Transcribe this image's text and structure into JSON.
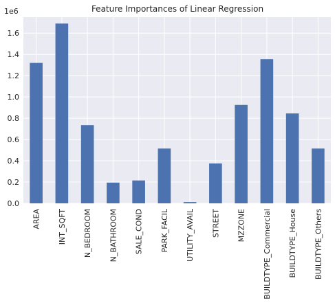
{
  "chart_data": {
    "type": "bar",
    "title": "Feature Importances of Linear Regression",
    "scale_label": "1e6",
    "xlabel": "",
    "ylabel": "",
    "categories": [
      "AREA",
      "INT_SQFT",
      "N_BEDROOM",
      "N_BATHROOM",
      "SALE_COND",
      "PARK_FACIL",
      "UTILITY_AVAIL",
      "STREET",
      "MZZONE",
      "BUILDTYPE_Commercial",
      "BUILDTYPE_House",
      "BUILDTYPE_Others"
    ],
    "values": [
      1320000,
      1690000,
      735000,
      195000,
      215000,
      515000,
      12000,
      375000,
      925000,
      1355000,
      845000,
      515000
    ],
    "ylim": [
      0,
      1750000
    ],
    "yticks": [
      0,
      200000,
      400000,
      600000,
      800000,
      1000000,
      1200000,
      1400000,
      1600000
    ],
    "ytick_labels": [
      "0.0",
      "0.2",
      "0.4",
      "0.6",
      "0.8",
      "1.0",
      "1.2",
      "1.4",
      "1.6"
    ],
    "grid": true,
    "legend": "none",
    "colors": {
      "bar": "#4c72b0",
      "plot_background": "#eaeaf2",
      "grid": "#ffffff",
      "text": "#262626"
    }
  }
}
